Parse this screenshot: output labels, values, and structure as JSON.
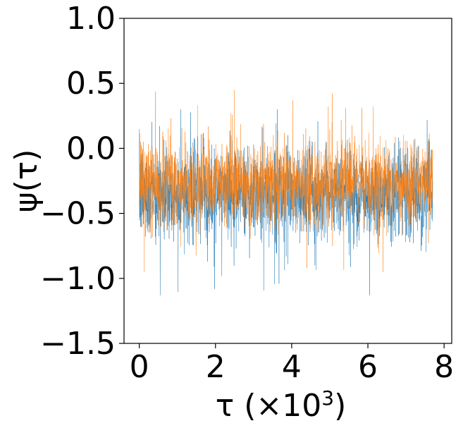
{
  "chart_data": {
    "type": "line",
    "xlabel": "τ (×10",
    "xlabel_exp": "3",
    "xlabel_close": ")",
    "ylabel": "ψ(τ)",
    "xlim": [
      -0.4,
      8.2
    ],
    "ylim": [
      -1.5,
      1.0
    ],
    "x_ticks": [
      0,
      2,
      4,
      6,
      8
    ],
    "x_tick_labels": [
      "0",
      "2",
      "4",
      "6",
      "8"
    ],
    "y_ticks": [
      -1.5,
      -1.0,
      -0.5,
      0.0,
      0.5,
      1.0
    ],
    "y_tick_labels": [
      "−1.5",
      "−1.0",
      "−0.5",
      "0.0",
      "0.5",
      "1.0"
    ],
    "series": [
      {
        "color": "#1f77b4",
        "x_range": [
          0,
          7.7
        ],
        "mean": -0.35,
        "spread": 0.18,
        "min": -1.35,
        "max": 0.3
      },
      {
        "color": "#ff7f0e",
        "x_range": [
          0,
          7.7
        ],
        "mean": -0.27,
        "spread": 0.16,
        "min": -0.95,
        "max": 0.67
      }
    ],
    "legend": "none",
    "grid": false
  }
}
